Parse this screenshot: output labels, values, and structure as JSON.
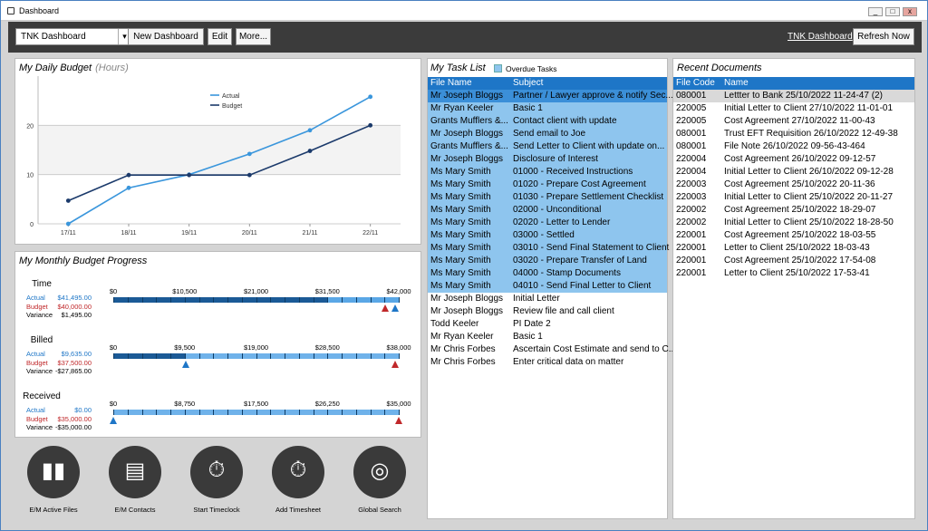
{
  "window": {
    "title": "Dashboard",
    "min": "_",
    "max": "□",
    "close": "x"
  },
  "toolbar": {
    "dashboard_select": "TNK Dashboard",
    "new_dashboard": "New Dashboard",
    "edit": "Edit",
    "more": "More...",
    "link": "TNK Dashboard",
    "refresh": "Refresh Now"
  },
  "daily_budget": {
    "title": "My Daily Budget",
    "subtitle": "(Hours)"
  },
  "chart_data": {
    "type": "line",
    "categories": [
      "17/11",
      "18/11",
      "19/11",
      "20/11",
      "21/11",
      "22/11"
    ],
    "series": [
      {
        "name": "Actual",
        "values": [
          0,
          7.3,
          10,
          14.2,
          19,
          25.8
        ],
        "color": "#3a96dc"
      },
      {
        "name": "Budget",
        "values": [
          4.7,
          9.9,
          9.9,
          9.9,
          14.8,
          20
        ],
        "color": "#1b3a6b"
      }
    ],
    "ylim": [
      0,
      30
    ],
    "yticks": [
      "0",
      "10",
      "20"
    ],
    "grid": true,
    "legend": "top"
  },
  "monthly": {
    "title": "My Monthly Budget Progress",
    "sections": [
      {
        "name": "Time",
        "actual_lbl": "Actual",
        "actual": "$41,495.00",
        "budget_lbl": "Budget",
        "budget": "$40,000.00",
        "var_lbl": "Variance",
        "variance": "$1,495.00",
        "ticks": [
          "$0",
          "$10,500",
          "$21,000",
          "$31,500",
          "$42,000"
        ],
        "actual_frac": 0.988,
        "budget_frac": 0.952
      },
      {
        "name": "Billed",
        "actual_lbl": "Actual",
        "actual": "$9,635.00",
        "budget_lbl": "Budget",
        "budget": "$37,500.00",
        "var_lbl": "Variance",
        "variance": "-$27,865.00",
        "ticks": [
          "$0",
          "$9,500",
          "$19,000",
          "$28,500",
          "$38,000"
        ],
        "actual_frac": 0.254,
        "budget_frac": 0.987
      },
      {
        "name": "Received",
        "actual_lbl": "Actual",
        "actual": "$0.00",
        "budget_lbl": "Budget",
        "budget": "$35,000.00",
        "var_lbl": "Variance",
        "variance": "-$35,000.00",
        "ticks": [
          "$0",
          "$8,750",
          "$17,500",
          "$26,250",
          "$35,000"
        ],
        "actual_frac": 0.0,
        "budget_frac": 1.0
      }
    ]
  },
  "tasks": {
    "title": "My Task List",
    "legend": "Overdue Tasks",
    "col_file": "File Name",
    "col_subject": "Subject",
    "rows": [
      {
        "file": "Mr Joseph Bloggs",
        "subject": "Partner / Lawyer approve & notify Sec...",
        "state": "selected"
      },
      {
        "file": "Mr Ryan Keeler",
        "subject": "Basic 1",
        "state": "overdue"
      },
      {
        "file": "Grants Mufflers &...",
        "subject": "Contact client with update",
        "state": "overdue"
      },
      {
        "file": "Mr Joseph Bloggs",
        "subject": "Send email to Joe",
        "state": "overdue"
      },
      {
        "file": "Grants Mufflers &...",
        "subject": "Send Letter to Client with update on...",
        "state": "overdue"
      },
      {
        "file": "Mr Joseph Bloggs",
        "subject": "Disclosure of Interest",
        "state": "overdue"
      },
      {
        "file": "Ms Mary Smith",
        "subject": "01000 - Received Instructions",
        "state": "overdue"
      },
      {
        "file": "Ms Mary Smith",
        "subject": "01020 - Prepare Cost Agreement",
        "state": "overdue"
      },
      {
        "file": "Ms Mary Smith",
        "subject": "01030 - Prepare Settlement Checklist",
        "state": "overdue"
      },
      {
        "file": "Ms Mary Smith",
        "subject": "02000 - Unconditional",
        "state": "overdue"
      },
      {
        "file": "Ms Mary Smith",
        "subject": "02020 - Letter to Lender",
        "state": "overdue"
      },
      {
        "file": "Ms Mary Smith",
        "subject": "03000 - Settled",
        "state": "overdue"
      },
      {
        "file": "Ms Mary Smith",
        "subject": "03010 - Send Final Statement to Client",
        "state": "overdue"
      },
      {
        "file": "Ms Mary Smith",
        "subject": "03020 - Prepare Transfer of Land",
        "state": "overdue"
      },
      {
        "file": "Ms Mary Smith",
        "subject": "04000 - Stamp Documents",
        "state": "overdue"
      },
      {
        "file": "Ms Mary Smith",
        "subject": "04010 - Send Final Letter to Client",
        "state": "overdue"
      },
      {
        "file": "Mr Joseph Bloggs",
        "subject": "Initial Letter",
        "state": "normal"
      },
      {
        "file": "Mr Joseph Bloggs",
        "subject": "Review file and call client",
        "state": "normal"
      },
      {
        "file": "Todd Keeler",
        "subject": "PI Date 2",
        "state": "normal"
      },
      {
        "file": "Mr Ryan Keeler",
        "subject": "Basic 1",
        "state": "normal"
      },
      {
        "file": "Mr Chris Forbes",
        "subject": "Ascertain Cost Estimate and send to C...",
        "state": "normal"
      },
      {
        "file": "Mr Chris Forbes",
        "subject": "Enter critical data on matter",
        "state": "normal"
      }
    ]
  },
  "docs": {
    "title": "Recent Documents",
    "col_code": "File Code",
    "col_name": "Name",
    "rows": [
      {
        "code": "080001",
        "name": "Lettter to Bank 25/10/2022 11-24-47 (2)",
        "selected": true
      },
      {
        "code": "220005",
        "name": "Initial Letter to Client 27/10/2022 11-01-01"
      },
      {
        "code": "220005",
        "name": "Cost Agreement 27/10/2022 11-00-43"
      },
      {
        "code": "080001",
        "name": "Trust EFT Requisition 26/10/2022 12-49-38"
      },
      {
        "code": "080001",
        "name": "File Note 26/10/2022 09-56-43-464"
      },
      {
        "code": "220004",
        "name": "Cost Agreement 26/10/2022 09-12-57"
      },
      {
        "code": "220004",
        "name": "Initial Letter to Client 26/10/2022 09-12-28"
      },
      {
        "code": "220003",
        "name": "Cost Agreement 25/10/2022 20-11-36"
      },
      {
        "code": "220003",
        "name": "Initial Letter to Client 25/10/2022 20-11-27"
      },
      {
        "code": "220002",
        "name": "Cost Agreement 25/10/2022 18-29-07"
      },
      {
        "code": "220002",
        "name": "Initial Letter to Client 25/10/2022 18-28-50"
      },
      {
        "code": "220001",
        "name": "Cost Agreement 25/10/2022 18-03-55"
      },
      {
        "code": "220001",
        "name": "Letter to Client 25/10/2022 18-03-43"
      },
      {
        "code": "220001",
        "name": "Cost Agreement 25/10/2022 17-54-08"
      },
      {
        "code": "220001",
        "name": "Letter to Client 25/10/2022 17-53-41"
      }
    ]
  },
  "shortcuts": [
    {
      "label": "E/M Active Files",
      "icon": "binders-icon"
    },
    {
      "label": "E/M Contacts",
      "icon": "contact-card-icon"
    },
    {
      "label": "Start Timeclock",
      "icon": "stopwatch-icon"
    },
    {
      "label": "Add Timesheet",
      "icon": "stopwatch-add-icon"
    },
    {
      "label": "Global Search",
      "icon": "globe-search-icon"
    }
  ],
  "colors": {
    "accent": "#1e76c7",
    "overdue": "#8ec5ee",
    "selected": "#3b8fd8",
    "bar_dark": "#1b5a96",
    "bar_light": "#5aa7e6",
    "actual_marker": "#1e76c7",
    "budget_marker": "#c0282a",
    "toolbar": "#3b3b3b"
  }
}
